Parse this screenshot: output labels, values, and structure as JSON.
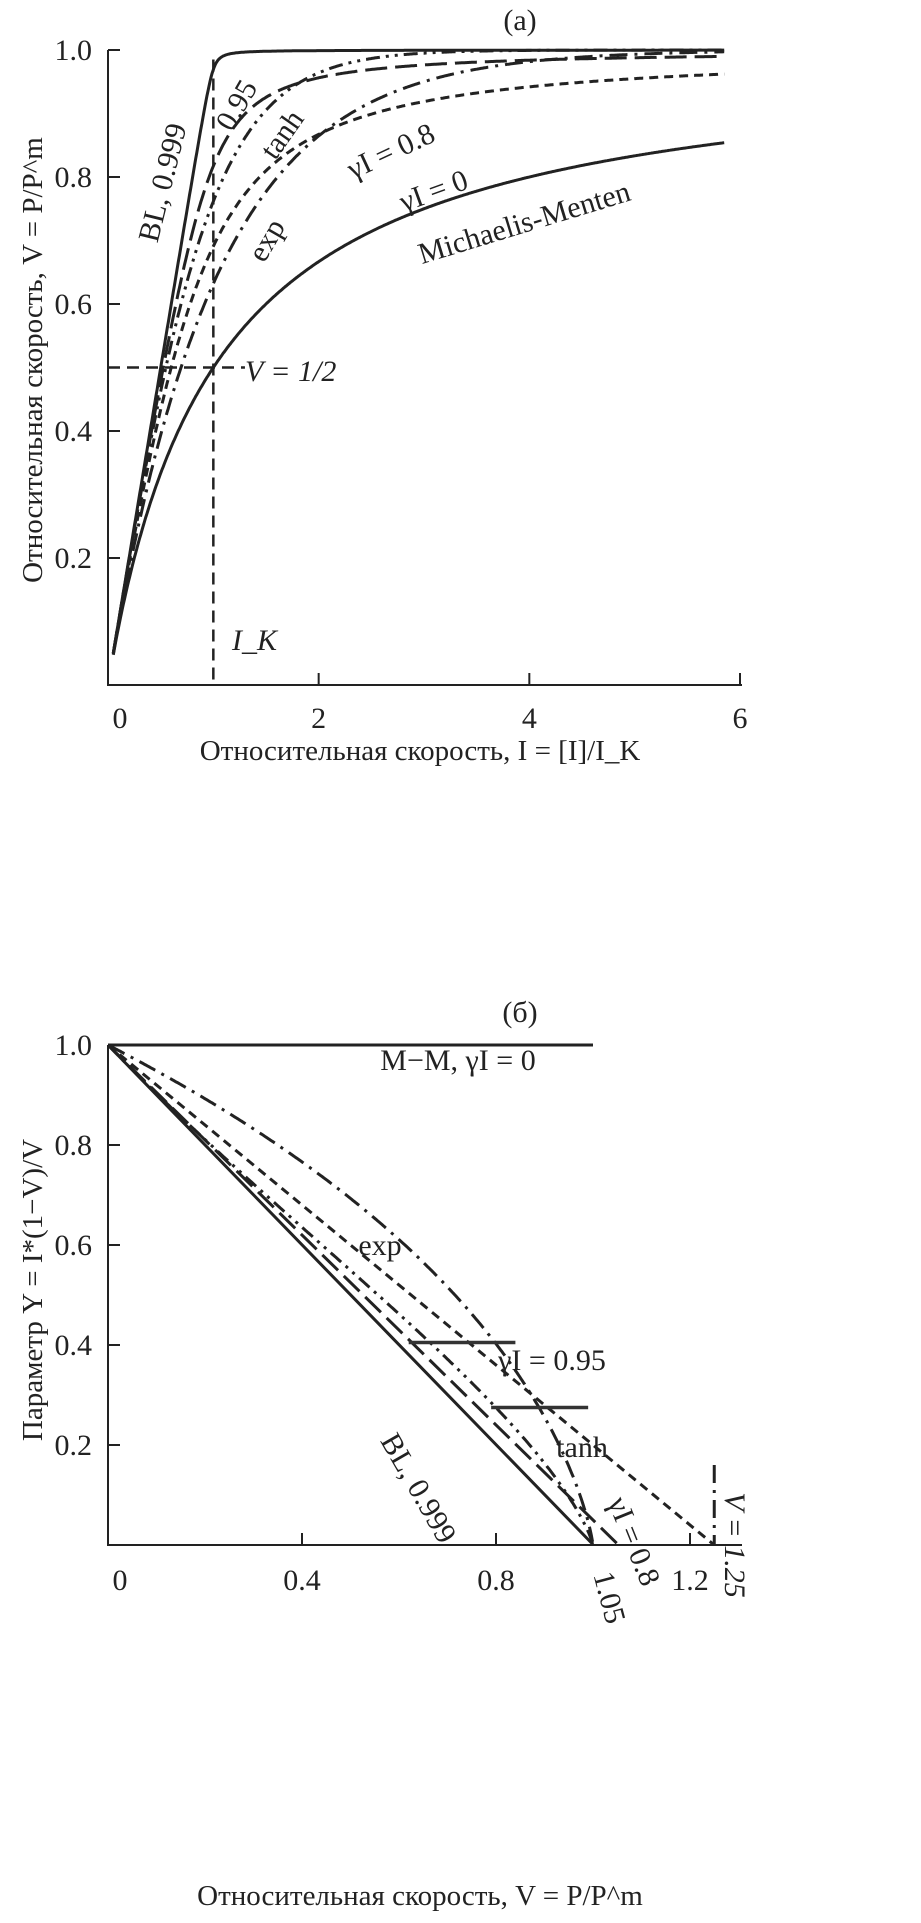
{
  "chart_data": [
    {
      "panel_label": "(a)",
      "type": "line",
      "xlabel": "Относительная скорость, I = [I]/I_K",
      "ylabel": "Относительная скорость, V = P/P^m",
      "xlim": [
        0,
        6
      ],
      "ylim": [
        0,
        1.0
      ],
      "xticks": [
        "0",
        "2",
        "4",
        "6"
      ],
      "yticks": [
        "0.2",
        "0.4",
        "0.6",
        "0.8",
        "1.0"
      ],
      "series": [
        {
          "name": "Michaelis-Menten, γI = 0",
          "model": "hyperbola",
          "gamma": 0,
          "style": "solid"
        },
        {
          "name": "γI = 0.8",
          "model": "hyperbola",
          "gamma": 0.8,
          "style": "dash"
        },
        {
          "name": "0.95",
          "model": "hyperbola",
          "gamma": 0.95,
          "style": "longdash"
        },
        {
          "name": "BL, 0.999",
          "model": "hyperbola",
          "gamma": 0.999,
          "style": "solid"
        },
        {
          "name": "exp",
          "model": "exp",
          "style": "dashdot"
        },
        {
          "name": "tanh",
          "model": "tanh",
          "style": "dashdotdot"
        }
      ],
      "annotations": {
        "half_label": "V = 1/2",
        "half_value": 0.5,
        "ik_label": "I_K",
        "ik_value": 1,
        "bl": "BL, 0.999",
        "g095": "0.95",
        "tanh": "tanh",
        "g08": "γI = 0.8",
        "g0": "γI = 0",
        "mm": "Michaelis-Menten",
        "exp": "exp"
      }
    },
    {
      "panel_label": "(б)",
      "type": "line",
      "xlabel": "Относительная скорость, V = P/P^m",
      "ylabel": "Параметр Y = I*(1−V)/V",
      "xlim": [
        0,
        1.3
      ],
      "ylim": [
        0,
        1.0
      ],
      "xticks": [
        "0",
        "0.4",
        "0.8",
        "1.2"
      ],
      "yticks": [
        "0.2",
        "0.4",
        "0.6",
        "0.8",
        "1.0"
      ],
      "series": [
        {
          "name": "M−M, γI = 0",
          "model": "linear",
          "gamma": 0,
          "vmax": 1.0,
          "style": "solid"
        },
        {
          "name": "γI = 0.8",
          "model": "linear",
          "gamma": 0.8,
          "vmax": 1.25,
          "style": "dash"
        },
        {
          "name": "γI = 0.95",
          "model": "linear",
          "gamma": 0.95,
          "vmax": 1.05,
          "style": "longdash"
        },
        {
          "name": "BL, 0.999",
          "model": "linear",
          "gamma": 0.999,
          "vmax": 1.0,
          "style": "solid"
        },
        {
          "name": "exp",
          "model": "exp",
          "style": "dashdot"
        },
        {
          "name": "tanh",
          "model": "tanh",
          "style": "dashdotdot"
        }
      ],
      "markers": [
        {
          "y": 0.405,
          "v_from": 0.62,
          "v_to": 0.84
        },
        {
          "y": 0.275,
          "v_from": 0.79,
          "v_to": 0.99
        }
      ],
      "annotations": {
        "mm": "M−M, γI = 0",
        "exp": "exp",
        "g095": "γI = 0.95",
        "tanh": "tanh",
        "bl": "BL, 0.999",
        "g08": "γI = 0.8",
        "v105": "1.05",
        "v125": "V = 1.25",
        "v125_value": 1.25
      }
    }
  ]
}
